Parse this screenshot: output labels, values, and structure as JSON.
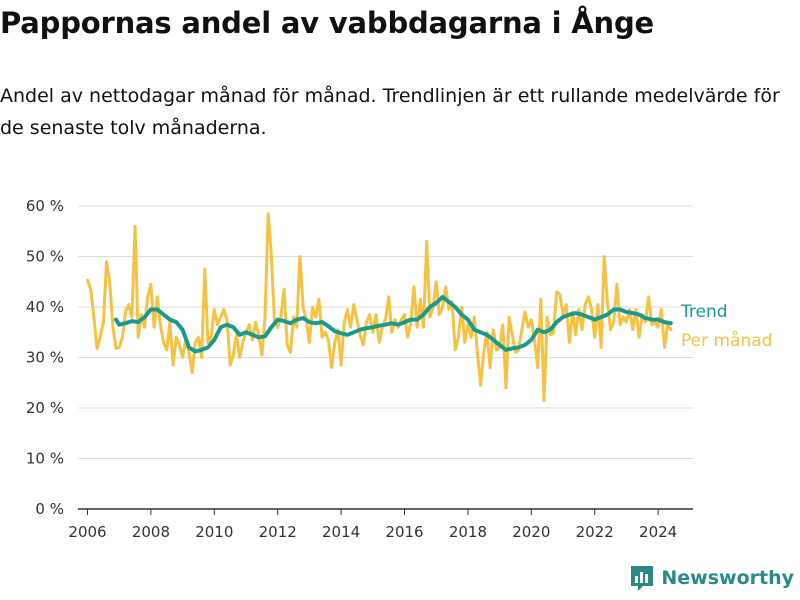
{
  "header": {
    "title": "Pappornas andel av vabbdagarna i Ånge",
    "subtitle": "Andel av nettodagar månad för månad. Trendlinjen är ett rullande medelvärde för de senaste tolv månaderna."
  },
  "brand": {
    "name": "Newsworthy",
    "color": "#2a8a86",
    "icon": "newsworthy-logo-icon"
  },
  "chart_data": {
    "type": "line",
    "ylim": [
      0,
      60
    ],
    "yticks": [
      0,
      10,
      20,
      30,
      40,
      50,
      60
    ],
    "ytick_labels": [
      "0 %",
      "10 %",
      "20 %",
      "30 %",
      "40 %",
      "50 %",
      "60 %"
    ],
    "xlim": [
      2005.7,
      2025.1
    ],
    "xticks": [
      2006,
      2008,
      2010,
      2012,
      2014,
      2016,
      2018,
      2020,
      2022,
      2024
    ],
    "xtick_labels": [
      "2006",
      "2008",
      "2010",
      "2012",
      "2014",
      "2016",
      "2018",
      "2020",
      "2022",
      "2024"
    ],
    "grid": true,
    "legend": "right",
    "series": [
      {
        "name": "Per månad",
        "color": "#f7c244",
        "points": [
          [
            2006.0,
            45.3
          ],
          [
            2006.1,
            43.5
          ],
          [
            2006.2,
            38.0
          ],
          [
            2006.3,
            31.8
          ],
          [
            2006.4,
            34.0
          ],
          [
            2006.5,
            37.0
          ],
          [
            2006.6,
            49.0
          ],
          [
            2006.7,
            45.0
          ],
          [
            2006.8,
            36.0
          ],
          [
            2006.9,
            31.8
          ],
          [
            2007.0,
            32.0
          ],
          [
            2007.1,
            34.0
          ],
          [
            2007.2,
            39.0
          ],
          [
            2007.3,
            40.5
          ],
          [
            2007.4,
            38.0
          ],
          [
            2007.5,
            56.0
          ],
          [
            2007.6,
            34.0
          ],
          [
            2007.7,
            38.5
          ],
          [
            2007.8,
            36.0
          ],
          [
            2007.9,
            42.0
          ],
          [
            2008.0,
            44.5
          ],
          [
            2008.1,
            36.0
          ],
          [
            2008.2,
            42.0
          ],
          [
            2008.3,
            36.5
          ],
          [
            2008.4,
            33.0
          ],
          [
            2008.5,
            31.5
          ],
          [
            2008.6,
            37.0
          ],
          [
            2008.7,
            28.5
          ],
          [
            2008.8,
            34.0
          ],
          [
            2008.9,
            32.5
          ],
          [
            2009.0,
            30.0
          ],
          [
            2009.1,
            33.5
          ],
          [
            2009.2,
            31.0
          ],
          [
            2009.3,
            27.0
          ],
          [
            2009.4,
            33.0
          ],
          [
            2009.5,
            34.0
          ],
          [
            2009.6,
            30.0
          ],
          [
            2009.7,
            47.5
          ],
          [
            2009.8,
            33.0
          ],
          [
            2009.9,
            34.0
          ],
          [
            2010.0,
            39.5
          ],
          [
            2010.1,
            36.5
          ],
          [
            2010.2,
            38.0
          ],
          [
            2010.3,
            39.5
          ],
          [
            2010.4,
            37.5
          ],
          [
            2010.5,
            28.5
          ],
          [
            2010.6,
            30.5
          ],
          [
            2010.7,
            34.5
          ],
          [
            2010.8,
            30.0
          ],
          [
            2010.9,
            33.0
          ],
          [
            2011.0,
            35.0
          ],
          [
            2011.1,
            36.5
          ],
          [
            2011.2,
            33.5
          ],
          [
            2011.3,
            37.0
          ],
          [
            2011.4,
            34.5
          ],
          [
            2011.5,
            30.5
          ],
          [
            2011.6,
            38.0
          ],
          [
            2011.7,
            58.5
          ],
          [
            2011.8,
            50.0
          ],
          [
            2011.9,
            37.0
          ],
          [
            2012.0,
            36.0
          ],
          [
            2012.1,
            38.0
          ],
          [
            2012.2,
            43.5
          ],
          [
            2012.3,
            32.5
          ],
          [
            2012.4,
            31.0
          ],
          [
            2012.5,
            38.0
          ],
          [
            2012.6,
            36.0
          ],
          [
            2012.7,
            50.0
          ],
          [
            2012.8,
            40.0
          ],
          [
            2012.9,
            37.5
          ],
          [
            2013.0,
            33.0
          ],
          [
            2013.1,
            40.0
          ],
          [
            2013.2,
            38.0
          ],
          [
            2013.3,
            41.5
          ],
          [
            2013.4,
            34.0
          ],
          [
            2013.5,
            35.0
          ],
          [
            2013.6,
            33.5
          ],
          [
            2013.7,
            28.0
          ],
          [
            2013.8,
            33.0
          ],
          [
            2013.9,
            35.5
          ],
          [
            2014.0,
            28.5
          ],
          [
            2014.1,
            37.0
          ],
          [
            2014.2,
            39.5
          ],
          [
            2014.3,
            36.0
          ],
          [
            2014.4,
            40.5
          ],
          [
            2014.5,
            37.5
          ],
          [
            2014.6,
            34.5
          ],
          [
            2014.7,
            32.5
          ],
          [
            2014.8,
            37.0
          ],
          [
            2014.9,
            38.5
          ],
          [
            2015.0,
            35.0
          ],
          [
            2015.1,
            38.5
          ],
          [
            2015.2,
            33.0
          ],
          [
            2015.3,
            36.0
          ],
          [
            2015.4,
            37.5
          ],
          [
            2015.5,
            42.0
          ],
          [
            2015.6,
            35.0
          ],
          [
            2015.7,
            37.5
          ],
          [
            2015.8,
            36.0
          ],
          [
            2015.9,
            37.5
          ],
          [
            2016.0,
            38.5
          ],
          [
            2016.1,
            34.0
          ],
          [
            2016.2,
            37.0
          ],
          [
            2016.3,
            44.0
          ],
          [
            2016.4,
            36.0
          ],
          [
            2016.5,
            41.5
          ],
          [
            2016.6,
            36.0
          ],
          [
            2016.7,
            53.0
          ],
          [
            2016.8,
            38.0
          ],
          [
            2016.9,
            40.0
          ],
          [
            2017.0,
            45.0
          ],
          [
            2017.1,
            38.5
          ],
          [
            2017.2,
            40.0
          ],
          [
            2017.3,
            44.0
          ],
          [
            2017.4,
            39.5
          ],
          [
            2017.5,
            41.0
          ],
          [
            2017.6,
            31.5
          ],
          [
            2017.7,
            34.0
          ],
          [
            2017.8,
            40.0
          ],
          [
            2017.9,
            33.0
          ],
          [
            2018.0,
            36.5
          ],
          [
            2018.1,
            34.0
          ],
          [
            2018.2,
            38.0
          ],
          [
            2018.3,
            31.0
          ],
          [
            2018.4,
            24.5
          ],
          [
            2018.5,
            31.0
          ],
          [
            2018.6,
            35.0
          ],
          [
            2018.7,
            28.0
          ],
          [
            2018.8,
            35.5
          ],
          [
            2018.9,
            31.5
          ],
          [
            2019.0,
            32.0
          ],
          [
            2019.1,
            36.5
          ],
          [
            2019.2,
            24.0
          ],
          [
            2019.3,
            38.0
          ],
          [
            2019.4,
            34.5
          ],
          [
            2019.5,
            31.0
          ],
          [
            2019.6,
            31.5
          ],
          [
            2019.7,
            35.5
          ],
          [
            2019.8,
            39.0
          ],
          [
            2019.9,
            36.0
          ],
          [
            2020.0,
            37.5
          ],
          [
            2020.1,
            33.5
          ],
          [
            2020.2,
            28.0
          ],
          [
            2020.3,
            41.5
          ],
          [
            2020.4,
            21.5
          ],
          [
            2020.5,
            38.0
          ],
          [
            2020.6,
            34.5
          ],
          [
            2020.7,
            35.0
          ],
          [
            2020.8,
            43.0
          ],
          [
            2020.9,
            42.5
          ],
          [
            2021.0,
            38.5
          ],
          [
            2021.1,
            40.5
          ],
          [
            2021.2,
            33.0
          ],
          [
            2021.3,
            39.0
          ],
          [
            2021.4,
            34.5
          ],
          [
            2021.5,
            39.5
          ],
          [
            2021.6,
            35.5
          ],
          [
            2021.7,
            40.5
          ],
          [
            2021.8,
            42.0
          ],
          [
            2021.9,
            39.5
          ],
          [
            2022.0,
            34.0
          ],
          [
            2022.1,
            40.5
          ],
          [
            2022.2,
            32.0
          ],
          [
            2022.3,
            50.0
          ],
          [
            2022.4,
            41.0
          ],
          [
            2022.5,
            35.5
          ],
          [
            2022.6,
            37.0
          ],
          [
            2022.7,
            44.5
          ],
          [
            2022.8,
            36.5
          ],
          [
            2022.9,
            38.0
          ],
          [
            2023.0,
            37.0
          ],
          [
            2023.1,
            39.5
          ],
          [
            2023.2,
            35.5
          ],
          [
            2023.3,
            39.5
          ],
          [
            2023.4,
            34.0
          ],
          [
            2023.5,
            38.5
          ],
          [
            2023.6,
            37.0
          ],
          [
            2023.7,
            42.0
          ],
          [
            2023.8,
            36.5
          ],
          [
            2023.9,
            37.0
          ],
          [
            2024.0,
            36.0
          ],
          [
            2024.1,
            39.5
          ],
          [
            2024.2,
            32.0
          ],
          [
            2024.3,
            36.5
          ],
          [
            2024.4,
            35.5
          ]
        ]
      },
      {
        "name": "Trend",
        "color": "#1a9a8e",
        "points": [
          [
            2006.9,
            37.5
          ],
          [
            2007.0,
            36.5
          ],
          [
            2007.2,
            36.8
          ],
          [
            2007.4,
            37.2
          ],
          [
            2007.6,
            37.0
          ],
          [
            2007.8,
            38.0
          ],
          [
            2008.0,
            39.5
          ],
          [
            2008.2,
            39.5
          ],
          [
            2008.4,
            38.5
          ],
          [
            2008.6,
            37.5
          ],
          [
            2008.8,
            37.0
          ],
          [
            2009.0,
            35.5
          ],
          [
            2009.2,
            32.0
          ],
          [
            2009.4,
            31.2
          ],
          [
            2009.6,
            31.5
          ],
          [
            2009.8,
            32.0
          ],
          [
            2010.0,
            33.5
          ],
          [
            2010.2,
            36.0
          ],
          [
            2010.4,
            36.5
          ],
          [
            2010.6,
            36.0
          ],
          [
            2010.8,
            34.5
          ],
          [
            2011.0,
            35.0
          ],
          [
            2011.2,
            34.5
          ],
          [
            2011.4,
            34.0
          ],
          [
            2011.6,
            34.2
          ],
          [
            2011.8,
            36.0
          ],
          [
            2012.0,
            37.5
          ],
          [
            2012.2,
            37.2
          ],
          [
            2012.4,
            36.8
          ],
          [
            2012.6,
            37.5
          ],
          [
            2012.8,
            37.8
          ],
          [
            2013.0,
            37.0
          ],
          [
            2013.2,
            36.8
          ],
          [
            2013.4,
            37.0
          ],
          [
            2013.6,
            36.2
          ],
          [
            2013.8,
            35.2
          ],
          [
            2014.0,
            34.8
          ],
          [
            2014.2,
            34.5
          ],
          [
            2014.4,
            35.0
          ],
          [
            2014.6,
            35.5
          ],
          [
            2014.8,
            35.8
          ],
          [
            2015.0,
            36.0
          ],
          [
            2015.2,
            36.3
          ],
          [
            2015.4,
            36.5
          ],
          [
            2015.6,
            36.8
          ],
          [
            2015.8,
            36.5
          ],
          [
            2016.0,
            37.0
          ],
          [
            2016.2,
            37.5
          ],
          [
            2016.4,
            37.5
          ],
          [
            2016.6,
            38.5
          ],
          [
            2016.8,
            40.0
          ],
          [
            2017.0,
            40.8
          ],
          [
            2017.2,
            42.0
          ],
          [
            2017.4,
            41.0
          ],
          [
            2017.6,
            40.0
          ],
          [
            2017.8,
            38.5
          ],
          [
            2018.0,
            37.5
          ],
          [
            2018.2,
            35.5
          ],
          [
            2018.4,
            35.0
          ],
          [
            2018.6,
            34.5
          ],
          [
            2018.8,
            33.5
          ],
          [
            2019.0,
            32.5
          ],
          [
            2019.2,
            31.5
          ],
          [
            2019.4,
            31.8
          ],
          [
            2019.6,
            32.0
          ],
          [
            2019.8,
            32.5
          ],
          [
            2020.0,
            33.5
          ],
          [
            2020.2,
            35.5
          ],
          [
            2020.4,
            35.0
          ],
          [
            2020.6,
            35.5
          ],
          [
            2020.8,
            37.0
          ],
          [
            2021.0,
            38.0
          ],
          [
            2021.2,
            38.5
          ],
          [
            2021.4,
            38.8
          ],
          [
            2021.6,
            38.5
          ],
          [
            2021.8,
            38.0
          ],
          [
            2022.0,
            37.5
          ],
          [
            2022.2,
            38.0
          ],
          [
            2022.4,
            38.5
          ],
          [
            2022.6,
            39.5
          ],
          [
            2022.8,
            39.5
          ],
          [
            2023.0,
            39.0
          ],
          [
            2023.2,
            38.8
          ],
          [
            2023.4,
            38.5
          ],
          [
            2023.6,
            37.8
          ],
          [
            2023.8,
            37.5
          ],
          [
            2024.0,
            37.5
          ],
          [
            2024.2,
            37.0
          ],
          [
            2024.4,
            36.8
          ]
        ]
      }
    ]
  }
}
